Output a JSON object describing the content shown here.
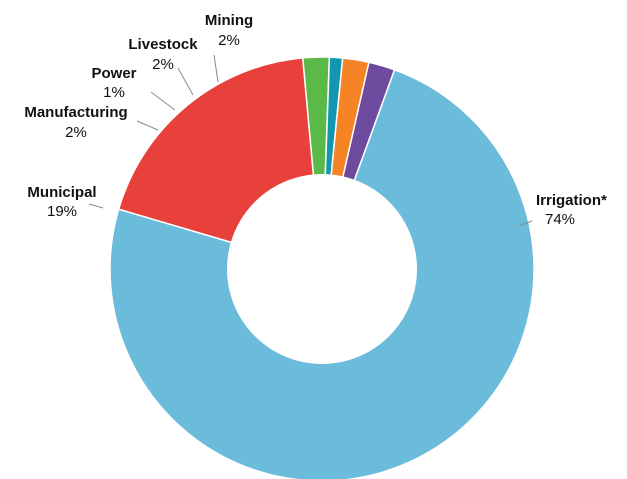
{
  "chart_data": {
    "type": "pie",
    "title": "",
    "donut": true,
    "categories": [
      "Irrigation*",
      "Municipal",
      "Manufacturing",
      "Power",
      "Livestock",
      "Mining"
    ],
    "values": [
      74,
      19,
      2,
      1,
      2,
      2
    ],
    "value_labels": [
      "74%",
      "19%",
      "2%",
      "1%",
      "2%",
      "2%"
    ],
    "colors": [
      "#6BBBDB",
      "#E8403A",
      "#5BBA47",
      "#1397B0",
      "#F58426",
      "#6E4A9E"
    ],
    "legend": "none"
  }
}
